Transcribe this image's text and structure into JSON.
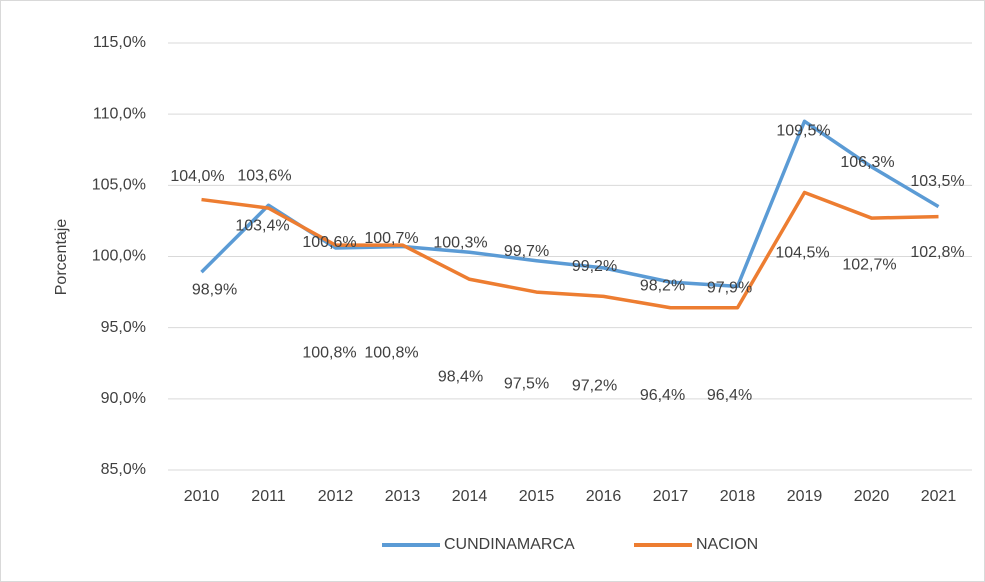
{
  "chart_data": {
    "type": "line",
    "y_label": "Porcentaje",
    "categories": [
      "2010",
      "2011",
      "2012",
      "2013",
      "2014",
      "2015",
      "2016",
      "2017",
      "2018",
      "2019",
      "2020",
      "2021"
    ],
    "series": [
      {
        "name": "CUNDINAMARCA",
        "color": "#5b9bd5",
        "values": [
          98.9,
          103.6,
          100.6,
          100.7,
          100.3,
          99.7,
          99.2,
          98.2,
          97.9,
          109.5,
          106.3,
          103.5
        ],
        "value_labels": [
          "98,9%",
          "103,6%",
          "100,6%",
          "100,7%",
          "100,3%",
          "99,7%",
          "99,2%",
          "98,2%",
          "97,9%",
          "109,5%",
          "106,3%",
          "103,5%"
        ]
      },
      {
        "name": "NACION",
        "color": "#ed7d31",
        "values": [
          104.0,
          103.4,
          100.8,
          100.8,
          98.4,
          97.5,
          97.2,
          96.4,
          96.4,
          104.5,
          102.7,
          102.8
        ],
        "value_labels": [
          "104,0%",
          "103,4%",
          "100,8%",
          "100,8%",
          "98,4%",
          "97,5%",
          "97,2%",
          "96,4%",
          "96,4%",
          "104,5%",
          "102,7%",
          "102,8%"
        ]
      }
    ],
    "ylim": [
      85,
      115
    ],
    "yticks": [
      {
        "value": 85,
        "label": "85,0%"
      },
      {
        "value": 90,
        "label": "90,0%"
      },
      {
        "value": 95,
        "label": "95,0%"
      },
      {
        "value": 100,
        "label": "100,0%"
      },
      {
        "value": 105,
        "label": "105,0%"
      },
      {
        "value": 110,
        "label": "110,0%"
      },
      {
        "value": 115,
        "label": "115,0%"
      }
    ],
    "grid": true,
    "legend": "bottom"
  }
}
